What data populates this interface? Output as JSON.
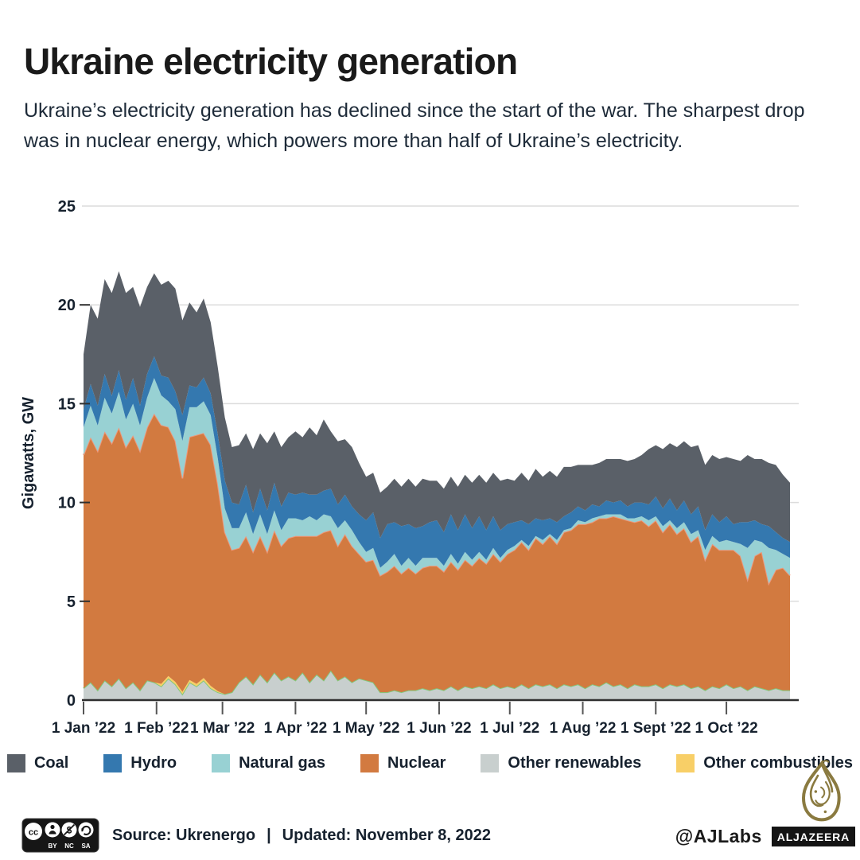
{
  "header": {
    "title": "Ukraine electricity generation",
    "subtitle": "Ukraine’s electricity generation has declined since the start of the war. The sharpest drop was in nuclear energy, which powers more than half of Ukraine’s electricity."
  },
  "chart_data": {
    "type": "area",
    "stacked": true,
    "title": "Ukraine electricity generation",
    "xlabel": "",
    "ylabel": "Gigawatts, GW",
    "ylim": [
      0,
      25
    ],
    "yticks": [
      0,
      5,
      10,
      15,
      20,
      25
    ],
    "grid": "horizontal",
    "legend_position": "bottom",
    "x_unit": "days since 1 Jan 2022",
    "x_domain": [
      0,
      300
    ],
    "xticks": [
      {
        "d": 0,
        "label": "1 Jan ’22"
      },
      {
        "d": 31,
        "label": "1 Feb ’22"
      },
      {
        "d": 59,
        "label": "1 Mar ’22"
      },
      {
        "d": 90,
        "label": "1 Apr ’22"
      },
      {
        "d": 120,
        "label": "1 May ’22"
      },
      {
        "d": 151,
        "label": "1 Jun ’22"
      },
      {
        "d": 181,
        "label": "1 Jul ’22"
      },
      {
        "d": 212,
        "label": "1 Aug ’22"
      },
      {
        "d": 243,
        "label": "1 Sept ’22"
      },
      {
        "d": 273,
        "label": "1 Oct ’22"
      }
    ],
    "colors": {
      "grid": "#dcdcdc",
      "axis": "#2f2f2f",
      "xtick_mark": "#555555"
    },
    "x": [
      0,
      3,
      6,
      9,
      12,
      15,
      18,
      21,
      24,
      27,
      30,
      33,
      36,
      39,
      42,
      45,
      48,
      51,
      54,
      57,
      60,
      63,
      66,
      69,
      72,
      75,
      78,
      81,
      84,
      87,
      90,
      93,
      96,
      99,
      102,
      105,
      108,
      111,
      114,
      117,
      120,
      123,
      126,
      129,
      132,
      135,
      138,
      141,
      144,
      147,
      150,
      153,
      156,
      159,
      162,
      165,
      168,
      171,
      174,
      177,
      180,
      183,
      186,
      189,
      192,
      195,
      198,
      201,
      204,
      207,
      210,
      213,
      216,
      219,
      222,
      225,
      228,
      231,
      234,
      237,
      240,
      243,
      246,
      249,
      252,
      255,
      258,
      261,
      264,
      267,
      270,
      273,
      276,
      279,
      282,
      285,
      288,
      291,
      294,
      297,
      300
    ],
    "series": [
      {
        "name": "Other renewables",
        "color": "#c8cfce",
        "stroke": "#82c87c",
        "values": [
          0.6,
          0.9,
          0.5,
          1.0,
          0.7,
          1.1,
          0.6,
          0.9,
          0.5,
          1.0,
          0.9,
          0.7,
          1.1,
          0.8,
          0.3,
          0.9,
          0.7,
          1.0,
          0.6,
          0.4,
          0.3,
          0.4,
          0.9,
          1.2,
          0.8,
          1.3,
          0.9,
          1.4,
          1.0,
          1.2,
          1.0,
          1.4,
          0.9,
          1.3,
          1.0,
          1.5,
          1.0,
          1.2,
          0.9,
          1.1,
          1.0,
          0.9,
          0.4,
          0.4,
          0.5,
          0.4,
          0.5,
          0.5,
          0.6,
          0.5,
          0.6,
          0.5,
          0.7,
          0.5,
          0.7,
          0.6,
          0.7,
          0.6,
          0.8,
          0.6,
          0.7,
          0.6,
          0.8,
          0.6,
          0.8,
          0.7,
          0.8,
          0.6,
          0.8,
          0.7,
          0.8,
          0.6,
          0.8,
          0.7,
          0.9,
          0.7,
          0.8,
          0.6,
          0.8,
          0.7,
          0.7,
          0.8,
          0.6,
          0.8,
          0.7,
          0.8,
          0.6,
          0.7,
          0.5,
          0.7,
          0.6,
          0.8,
          0.6,
          0.7,
          0.5,
          0.7,
          0.6,
          0.5,
          0.6,
          0.5,
          0.5
        ]
      },
      {
        "name": "Other combustibles",
        "color": "#f8cf67",
        "stroke": null,
        "values": [
          0,
          0,
          0,
          0,
          0,
          0,
          0,
          0,
          0,
          0,
          0,
          0.12,
          0.12,
          0.12,
          0.12,
          0.12,
          0.12,
          0.12,
          0.12,
          0.05,
          0,
          0,
          0,
          0,
          0,
          0,
          0,
          0,
          0,
          0,
          0,
          0,
          0,
          0,
          0,
          0,
          0,
          0,
          0,
          0,
          0,
          0,
          0,
          0,
          0,
          0,
          0,
          0,
          0,
          0,
          0,
          0,
          0,
          0,
          0,
          0,
          0,
          0,
          0,
          0,
          0,
          0,
          0,
          0,
          0,
          0,
          0,
          0,
          0,
          0,
          0,
          0,
          0,
          0,
          0,
          0,
          0,
          0,
          0,
          0,
          0,
          0,
          0,
          0,
          0,
          0,
          0,
          0,
          0,
          0,
          0,
          0,
          0,
          0,
          0,
          0,
          0,
          0,
          0,
          0,
          0
        ]
      },
      {
        "name": "Nuclear",
        "color": "#d27a40",
        "stroke": "#ef9679",
        "values": [
          11.8,
          12.4,
          12.1,
          12.6,
          12.3,
          12.7,
          12.2,
          12.5,
          12.1,
          12.8,
          13.6,
          13.1,
          12.6,
          12.2,
          10.8,
          12.3,
          12.6,
          12.4,
          12.2,
          10.5,
          8.2,
          7.2,
          6.8,
          7.1,
          6.7,
          7.0,
          6.6,
          7.2,
          6.8,
          7.0,
          7.3,
          6.9,
          7.4,
          7.0,
          7.5,
          7.1,
          6.8,
          7.2,
          6.9,
          6.3,
          6.0,
          6.2,
          5.9,
          6.1,
          6.3,
          6.0,
          6.2,
          5.9,
          6.1,
          6.3,
          6.2,
          6.0,
          6.3,
          6.1,
          6.4,
          6.2,
          6.5,
          6.3,
          6.6,
          6.4,
          6.7,
          7.0,
          7.2,
          7.0,
          7.4,
          7.2,
          7.5,
          7.3,
          7.7,
          7.9,
          8.1,
          8.3,
          8.2,
          8.5,
          8.3,
          8.6,
          8.4,
          8.5,
          8.2,
          8.4,
          8.1,
          8.3,
          7.9,
          8.1,
          7.7,
          7.9,
          7.4,
          7.6,
          6.6,
          7.2,
          7.0,
          6.8,
          7.0,
          6.6,
          5.6,
          6.6,
          6.9,
          5.4,
          6.0,
          6.2,
          5.8
        ]
      },
      {
        "name": "Natural gas",
        "color": "#98d1d3",
        "stroke": null,
        "values": [
          1.4,
          1.6,
          1.3,
          1.7,
          1.5,
          1.8,
          1.4,
          1.6,
          1.3,
          1.5,
          1.8,
          1.5,
          1.3,
          1.6,
          1.9,
          1.5,
          1.4,
          1.6,
          1.5,
          1.3,
          1.2,
          1.1,
          1.0,
          1.2,
          0.9,
          1.1,
          0.9,
          1.0,
          0.8,
          1.0,
          0.9,
          0.8,
          1.0,
          0.8,
          0.9,
          0.7,
          0.9,
          0.7,
          0.8,
          0.6,
          0.5,
          0.6,
          0.4,
          0.5,
          0.6,
          0.4,
          0.5,
          0.4,
          0.5,
          0.4,
          0.4,
          0.3,
          0.4,
          0.3,
          0.4,
          0.3,
          0.3,
          0.2,
          0.3,
          0.2,
          0.2,
          0.2,
          0.1,
          0.2,
          0.1,
          0.2,
          0.1,
          0.2,
          0.1,
          0.1,
          0.2,
          0.1,
          0.2,
          0.1,
          0.2,
          0.1,
          0.2,
          0.1,
          0.2,
          0.2,
          0.3,
          0.2,
          0.3,
          0.2,
          0.3,
          0.3,
          0.4,
          0.3,
          0.5,
          0.4,
          0.4,
          0.5,
          0.4,
          0.6,
          1.6,
          0.8,
          0.5,
          1.8,
          1.0,
          0.7,
          0.9
        ]
      },
      {
        "name": "Hydro",
        "color": "#3478af",
        "stroke": null,
        "values": [
          0.9,
          1.1,
          1.0,
          1.2,
          0.9,
          1.1,
          1.0,
          1.3,
          1.0,
          1.2,
          1.1,
          1.0,
          1.2,
          0.9,
          1.3,
          1.1,
          1.0,
          1.2,
          1.1,
          1.2,
          1.4,
          1.3,
          1.2,
          1.4,
          1.1,
          1.3,
          1.2,
          1.4,
          1.2,
          1.3,
          1.2,
          1.4,
          1.1,
          1.3,
          1.2,
          1.4,
          1.2,
          1.3,
          1.2,
          1.4,
          1.6,
          1.8,
          1.5,
          1.9,
          1.6,
          2.0,
          1.7,
          1.9,
          1.6,
          1.8,
          1.9,
          1.7,
          2.0,
          1.7,
          1.9,
          1.6,
          1.8,
          1.5,
          1.6,
          1.4,
          1.3,
          1.2,
          1.0,
          1.1,
          0.9,
          1.0,
          0.8,
          0.9,
          0.7,
          0.8,
          0.7,
          0.6,
          0.7,
          0.5,
          0.7,
          0.6,
          0.7,
          0.6,
          0.8,
          0.7,
          0.8,
          1.0,
          0.9,
          1.1,
          0.9,
          1.1,
          1.0,
          1.2,
          1.0,
          1.1,
          1.0,
          1.2,
          0.9,
          1.1,
          1.3,
          1.0,
          0.9,
          1.1,
          0.9,
          0.8,
          0.8
        ]
      },
      {
        "name": "Coal",
        "color": "#5a6068",
        "stroke": null,
        "values": [
          2.8,
          4.0,
          4.4,
          4.8,
          5.2,
          5.0,
          5.4,
          4.6,
          5.0,
          4.4,
          4.2,
          4.6,
          4.9,
          5.2,
          4.8,
          4.2,
          3.8,
          4.0,
          3.6,
          3.4,
          3.2,
          2.8,
          3.0,
          2.6,
          3.2,
          2.8,
          3.4,
          2.6,
          3.0,
          2.8,
          3.2,
          2.8,
          3.4,
          3.0,
          3.6,
          2.9,
          3.2,
          2.8,
          3.0,
          2.6,
          2.2,
          2.0,
          2.3,
          1.9,
          2.2,
          2.0,
          2.3,
          2.1,
          2.4,
          2.1,
          2.0,
          2.2,
          1.9,
          2.2,
          2.0,
          2.3,
          2.1,
          2.4,
          2.2,
          2.5,
          2.3,
          2.1,
          2.4,
          2.2,
          2.5,
          2.2,
          2.4,
          2.3,
          2.5,
          2.3,
          2.1,
          2.3,
          2.0,
          2.2,
          2.1,
          2.2,
          2.1,
          2.3,
          2.2,
          2.4,
          2.8,
          2.6,
          3.0,
          2.8,
          3.2,
          3.0,
          3.4,
          3.1,
          3.3,
          3.0,
          3.2,
          3.0,
          3.3,
          3.1,
          3.4,
          3.1,
          3.3,
          3.2,
          3.4,
          3.2,
          3.0
        ]
      }
    ]
  },
  "legend": {
    "items": [
      {
        "label": "Coal",
        "color": "#5a6068"
      },
      {
        "label": "Hydro",
        "color": "#3478af"
      },
      {
        "label": "Natural gas",
        "color": "#98d1d3"
      },
      {
        "label": "Nuclear",
        "color": "#d27a40"
      },
      {
        "label": "Other renewables",
        "color": "#c8cfce"
      },
      {
        "label": "Other combustibles",
        "color": "#f8cf67"
      }
    ]
  },
  "footer": {
    "source": "Source: Ukrenergo",
    "separator": "|",
    "updated": "Updated:  November 8, 2022",
    "license_labels": [
      "BY",
      "NC",
      "SA"
    ]
  },
  "branding": {
    "ajlabs_handle": "@AJLabs",
    "network_wordmark": "ALJAZEERA",
    "logo_color": "#8a7a40"
  }
}
